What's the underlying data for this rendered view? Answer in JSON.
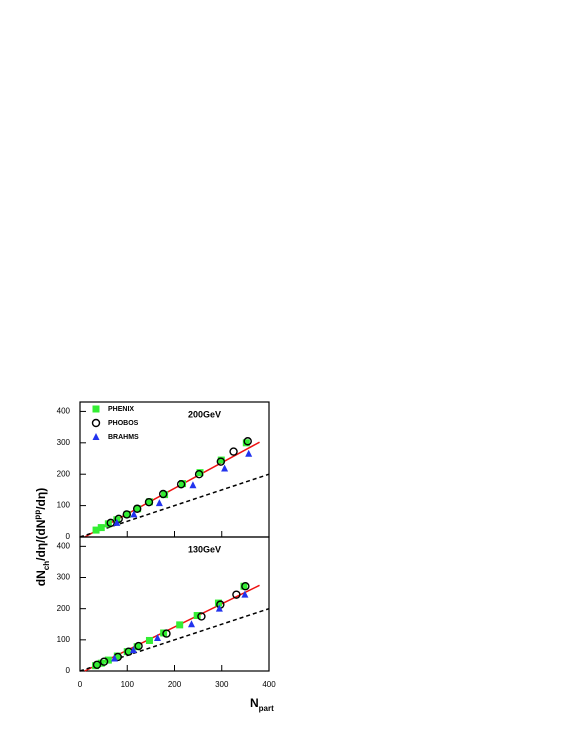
{
  "chart_data": [
    {
      "type": "scatter",
      "annotation": "200GeV",
      "ylabel": {
        "main": "dN",
        "sub": "ch",
        "mid": "/dη/(dN",
        "sup": "pp",
        "end": "/dη)"
      },
      "xlim": [
        0,
        400
      ],
      "xticks": [
        0,
        100,
        200,
        300,
        400
      ],
      "ylim": [
        0,
        430
      ],
      "yticks": [
        0,
        100,
        200,
        300,
        400
      ],
      "legend": "upper left",
      "series": [
        {
          "name": "PHENIX",
          "marker": "square",
          "color": "#33ee33",
          "x": [
            352,
            299,
            254,
            217,
            179,
            147,
            122,
            100,
            78,
            60,
            45,
            34
          ],
          "values": [
            300,
            245,
            205,
            170,
            135,
            112,
            90,
            72,
            55,
            42,
            30,
            22
          ]
        },
        {
          "name": "PHOBOS",
          "marker": "circle",
          "color": "#000000",
          "x": [
            355,
            325,
            298,
            252,
            214,
            176,
            146,
            121,
            99,
            82,
            65
          ],
          "values": [
            305,
            272,
            240,
            200,
            168,
            137,
            111,
            90,
            72,
            58,
            45
          ]
        },
        {
          "name": "BRAHMS",
          "marker": "triangle",
          "color": "#2233ee",
          "x": [
            357,
            306,
            239,
            168,
            114,
            78
          ],
          "values": [
            265,
            218,
            165,
            108,
            72,
            45
          ]
        }
      ],
      "fit_lines": [
        {
          "color": "#ee1111",
          "dash": false,
          "x": [
            10,
            380
          ],
          "values": [
            0,
            302
          ]
        },
        {
          "color": "#000000",
          "dash": true,
          "x": [
            0,
            400
          ],
          "values": [
            0,
            200
          ]
        }
      ]
    },
    {
      "type": "scatter",
      "annotation": "130GeV",
      "xlabel": {
        "main": "N",
        "sub": "part"
      },
      "xlim": [
        0,
        400
      ],
      "xticks": [
        0,
        100,
        200,
        300,
        400
      ],
      "ylim": [
        0,
        430
      ],
      "yticks": [
        0,
        100,
        200,
        300,
        400
      ],
      "series": [
        {
          "name": "PHENIX",
          "marker": "square",
          "color": "#33ee33",
          "x": [
            347,
            293,
            248,
            211,
            177,
            147,
            121,
            100,
            79,
            60,
            45,
            33
          ],
          "values": [
            272,
            218,
            178,
            148,
            122,
            98,
            78,
            62,
            48,
            35,
            25,
            17
          ]
        },
        {
          "name": "PHOBOS",
          "marker": "circle",
          "color": "#000000",
          "x": [
            350,
            331,
            297,
            257,
            183,
            124,
            103,
            80,
            51,
            36
          ],
          "values": [
            272,
            245,
            213,
            175,
            120,
            80,
            62,
            45,
            30,
            20
          ]
        },
        {
          "name": "BRAHMS",
          "marker": "triangle",
          "color": "#2233ee",
          "x": [
            349,
            295,
            236,
            164,
            113,
            73
          ],
          "values": [
            245,
            200,
            150,
            106,
            67,
            40
          ]
        }
      ],
      "fit_lines": [
        {
          "color": "#ee1111",
          "dash": false,
          "x": [
            10,
            380
          ],
          "values": [
            0,
            275
          ]
        },
        {
          "color": "#000000",
          "dash": true,
          "x": [
            0,
            400
          ],
          "values": [
            0,
            200
          ]
        }
      ]
    }
  ]
}
